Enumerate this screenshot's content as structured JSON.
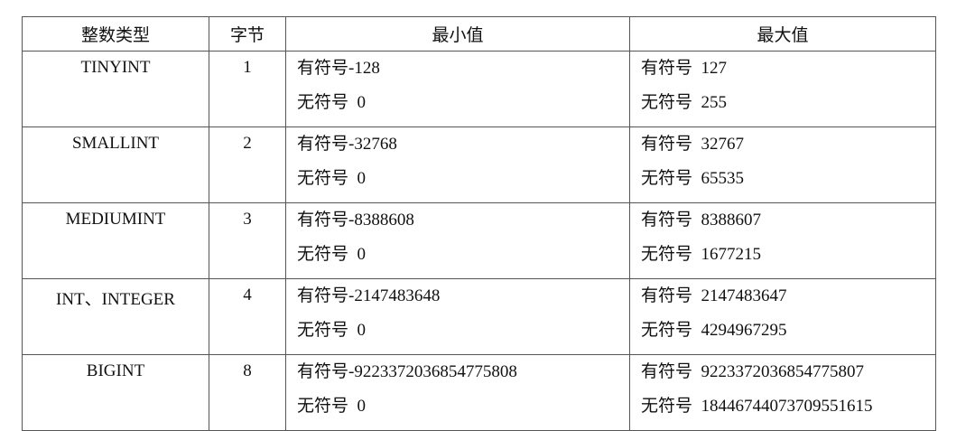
{
  "table": {
    "headers": [
      "整数类型",
      "字节",
      "最小值",
      "最大值"
    ],
    "rows": [
      {
        "type": "TINYINT",
        "bytes": "1",
        "min": [
          "有符号-128",
          "无符号  0"
        ],
        "max": [
          "有符号  127",
          "无符号  255"
        ]
      },
      {
        "type": "SMALLINT",
        "bytes": "2",
        "min": [
          "有符号-32768",
          "无符号  0"
        ],
        "max": [
          "有符号  32767",
          "无符号  65535"
        ]
      },
      {
        "type": "MEDIUMINT",
        "bytes": "3",
        "min": [
          "有符号-8388608",
          "无符号  0"
        ],
        "max": [
          "有符号  8388607",
          "无符号  1677215"
        ]
      },
      {
        "type": "INT、INTEGER",
        "bytes": "4",
        "min": [
          "有符号-2147483648",
          "无符号  0"
        ],
        "max": [
          "有符号  2147483647",
          "无符号  4294967295"
        ]
      },
      {
        "type": "BIGINT",
        "bytes": "8",
        "min": [
          "有符号-9223372036854775808",
          "无符号  0"
        ],
        "max": [
          "有符号  9223372036854775807",
          "无符号  18446744073709551615"
        ]
      }
    ]
  }
}
